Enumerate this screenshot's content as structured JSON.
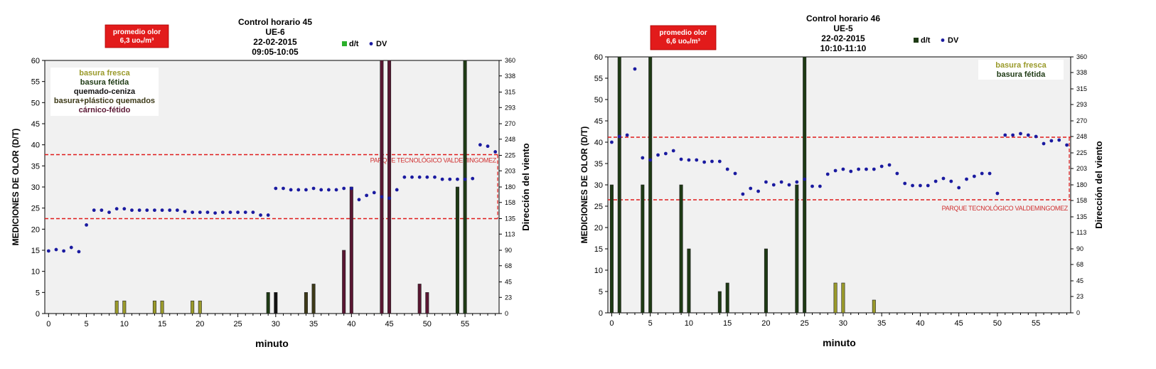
{
  "chart_data": [
    {
      "type": "bar+scatter",
      "title_lines": [
        "Control horario  45",
        "UE-6",
        "22-02-2015",
        "09:05-10:05"
      ],
      "badge_lines": [
        "promedio olor",
        "6,3 uoₑ/m³"
      ],
      "legend": {
        "bar": "d/t",
        "dot": "DV"
      },
      "xlabel": "minuto",
      "ylabel": "MEDICIONES  DE  OLOR (D/T)",
      "y2label": "Dirección del viento",
      "xlim": [
        -0.5,
        59.5
      ],
      "ylim": [
        0,
        60
      ],
      "y2lim": [
        0,
        360
      ],
      "x_ticks": [
        "0",
        "5",
        "10",
        "15",
        "20",
        "25",
        "30",
        "35",
        "40",
        "45",
        "50",
        "55"
      ],
      "y_ticks": [
        "0",
        "5",
        "10",
        "15",
        "20",
        "25",
        "30",
        "35",
        "40",
        "45",
        "50",
        "55",
        "60"
      ],
      "y2_ticks": [
        "0",
        "23",
        "45",
        "68",
        "90",
        "113",
        "135",
        "158",
        "180",
        "203",
        "225",
        "248",
        "270",
        "293",
        "315",
        "338",
        "360"
      ],
      "band": {
        "label": "PARQUE TECNOLÓGICO VALDEMINGOMEZ",
        "dv_min": 135,
        "dv_max": 226
      },
      "categories": [
        {
          "label": "basura fresca",
          "color": "#9a9a2a"
        },
        {
          "label": "basura fétida",
          "color": "#1e3a14"
        },
        {
          "label": "quemado-ceniza",
          "color": "#111111"
        },
        {
          "label": "basura+plástico quemados",
          "color": "#3d3a18"
        },
        {
          "label": "cárnico-fétido",
          "color": "#5a1632"
        }
      ],
      "bars": [
        {
          "x": 9,
          "value": 3,
          "cat": 0
        },
        {
          "x": 10,
          "value": 3,
          "cat": 0
        },
        {
          "x": 14,
          "value": 3,
          "cat": 0
        },
        {
          "x": 15,
          "value": 3,
          "cat": 0
        },
        {
          "x": 19,
          "value": 3,
          "cat": 0
        },
        {
          "x": 20,
          "value": 3,
          "cat": 0
        },
        {
          "x": 29,
          "value": 5,
          "cat": 1
        },
        {
          "x": 30,
          "value": 5,
          "cat": 2
        },
        {
          "x": 34,
          "value": 5,
          "cat": 3
        },
        {
          "x": 35,
          "value": 7,
          "cat": 3
        },
        {
          "x": 39,
          "value": 15,
          "cat": 4
        },
        {
          "x": 40,
          "value": 30,
          "cat": 4
        },
        {
          "x": 44,
          "value": 60,
          "cat": 4
        },
        {
          "x": 45,
          "value": 60,
          "cat": 4
        },
        {
          "x": 49,
          "value": 7,
          "cat": 4
        },
        {
          "x": 50,
          "value": 5,
          "cat": 4
        },
        {
          "x": 54,
          "value": 30,
          "cat": 1
        },
        {
          "x": 55,
          "value": 60,
          "cat": 1
        }
      ],
      "dv": [
        [
          0,
          89
        ],
        [
          1,
          91
        ],
        [
          2,
          89
        ],
        [
          3,
          94
        ],
        [
          4,
          88
        ],
        [
          5,
          126
        ],
        [
          6,
          147
        ],
        [
          7,
          147
        ],
        [
          8,
          144
        ],
        [
          9,
          149
        ],
        [
          10,
          149
        ],
        [
          11,
          147
        ],
        [
          12,
          147
        ],
        [
          13,
          147
        ],
        [
          14,
          147
        ],
        [
          15,
          147
        ],
        [
          16,
          147
        ],
        [
          17,
          147
        ],
        [
          18,
          145
        ],
        [
          19,
          144
        ],
        [
          20,
          144
        ],
        [
          21,
          144
        ],
        [
          22,
          143
        ],
        [
          23,
          144
        ],
        [
          24,
          144
        ],
        [
          25,
          144
        ],
        [
          26,
          144
        ],
        [
          27,
          144
        ],
        [
          28,
          140
        ],
        [
          29,
          140
        ],
        [
          30,
          178
        ],
        [
          31,
          178
        ],
        [
          32,
          176
        ],
        [
          33,
          176
        ],
        [
          34,
          176
        ],
        [
          35,
          178
        ],
        [
          36,
          176
        ],
        [
          37,
          176
        ],
        [
          38,
          176
        ],
        [
          39,
          178
        ],
        [
          40,
          178
        ],
        [
          41,
          162
        ],
        [
          42,
          168
        ],
        [
          43,
          172
        ],
        [
          44,
          166
        ],
        [
          45,
          164
        ],
        [
          46,
          176
        ],
        [
          47,
          194
        ],
        [
          48,
          194
        ],
        [
          49,
          194
        ],
        [
          50,
          194
        ],
        [
          51,
          194
        ],
        [
          52,
          191
        ],
        [
          53,
          191
        ],
        [
          54,
          191
        ],
        [
          55,
          191
        ],
        [
          56,
          192
        ],
        [
          57,
          240
        ],
        [
          58,
          238
        ],
        [
          59,
          230
        ]
      ]
    },
    {
      "type": "bar+scatter",
      "title_lines": [
        "Control horario 46",
        "UE-5",
        "22-02-2015",
        "10:10-11:10"
      ],
      "badge_lines": [
        "promedio olor",
        "6,6 uoₑ/m³"
      ],
      "legend": {
        "bar": "d/t",
        "dot": "DV"
      },
      "xlabel": "minuto",
      "ylabel": "MEDICIONES  DE  OLOR (D/T)",
      "y2label": "Dirección del viento",
      "xlim": [
        -0.5,
        59.5
      ],
      "ylim": [
        0,
        60
      ],
      "y2lim": [
        0,
        360
      ],
      "x_ticks": [
        "0",
        "5",
        "10",
        "15",
        "20",
        "25",
        "30",
        "35",
        "40",
        "45",
        "50",
        "55"
      ],
      "y_ticks": [
        "0",
        "5",
        "10",
        "15",
        "20",
        "25",
        "30",
        "35",
        "40",
        "45",
        "50",
        "55",
        "60"
      ],
      "y2_ticks": [
        "0",
        "23",
        "45",
        "68",
        "90",
        "113",
        "135",
        "158",
        "180",
        "203",
        "225",
        "248",
        "270",
        "293",
        "315",
        "338",
        "360"
      ],
      "band": {
        "label": "PARQUE TECNOLÓGICO VALDEMINGOMEZ",
        "dv_min": 159,
        "dv_max": 247
      },
      "categories": [
        {
          "label": "basura fresca",
          "color": "#9a9a2a"
        },
        {
          "label": "basura fétida",
          "color": "#1e3a14"
        }
      ],
      "bars": [
        {
          "x": 0,
          "value": 30,
          "cat": 1
        },
        {
          "x": 1,
          "value": 60,
          "cat": 1
        },
        {
          "x": 4,
          "value": 30,
          "cat": 1
        },
        {
          "x": 5,
          "value": 60,
          "cat": 1
        },
        {
          "x": 9,
          "value": 30,
          "cat": 1
        },
        {
          "x": 10,
          "value": 15,
          "cat": 1
        },
        {
          "x": 14,
          "value": 5,
          "cat": 1
        },
        {
          "x": 15,
          "value": 7,
          "cat": 1
        },
        {
          "x": 20,
          "value": 15,
          "cat": 1
        },
        {
          "x": 24,
          "value": 30,
          "cat": 1
        },
        {
          "x": 25,
          "value": 60,
          "cat": 1
        },
        {
          "x": 29,
          "value": 7,
          "cat": 0
        },
        {
          "x": 30,
          "value": 7,
          "cat": 0
        },
        {
          "x": 34,
          "value": 3,
          "cat": 0
        }
      ],
      "dv": [
        [
          0,
          240
        ],
        [
          1,
          248
        ],
        [
          2,
          250
        ],
        [
          3,
          343
        ],
        [
          4,
          218
        ],
        [
          5,
          215
        ],
        [
          6,
          222
        ],
        [
          7,
          224
        ],
        [
          8,
          228
        ],
        [
          9,
          216
        ],
        [
          10,
          215
        ],
        [
          11,
          215
        ],
        [
          12,
          212
        ],
        [
          13,
          213
        ],
        [
          14,
          213
        ],
        [
          15,
          202
        ],
        [
          16,
          196
        ],
        [
          17,
          167
        ],
        [
          18,
          175
        ],
        [
          19,
          171
        ],
        [
          20,
          184
        ],
        [
          21,
          180
        ],
        [
          22,
          184
        ],
        [
          23,
          180
        ],
        [
          24,
          184
        ],
        [
          25,
          188
        ],
        [
          26,
          178
        ],
        [
          27,
          178
        ],
        [
          28,
          195
        ],
        [
          29,
          200
        ],
        [
          30,
          202
        ],
        [
          31,
          199
        ],
        [
          32,
          202
        ],
        [
          33,
          202
        ],
        [
          34,
          202
        ],
        [
          35,
          206
        ],
        [
          36,
          208
        ],
        [
          37,
          196
        ],
        [
          38,
          182
        ],
        [
          39,
          179
        ],
        [
          40,
          179
        ],
        [
          41,
          179
        ],
        [
          42,
          185
        ],
        [
          43,
          189
        ],
        [
          44,
          185
        ],
        [
          45,
          176
        ],
        [
          46,
          188
        ],
        [
          47,
          192
        ],
        [
          48,
          196
        ],
        [
          49,
          196
        ],
        [
          50,
          168
        ],
        [
          51,
          250
        ],
        [
          52,
          250
        ],
        [
          53,
          252
        ],
        [
          54,
          250
        ],
        [
          55,
          248
        ],
        [
          56,
          238
        ],
        [
          57,
          242
        ],
        [
          58,
          243
        ],
        [
          59,
          236
        ]
      ]
    }
  ]
}
